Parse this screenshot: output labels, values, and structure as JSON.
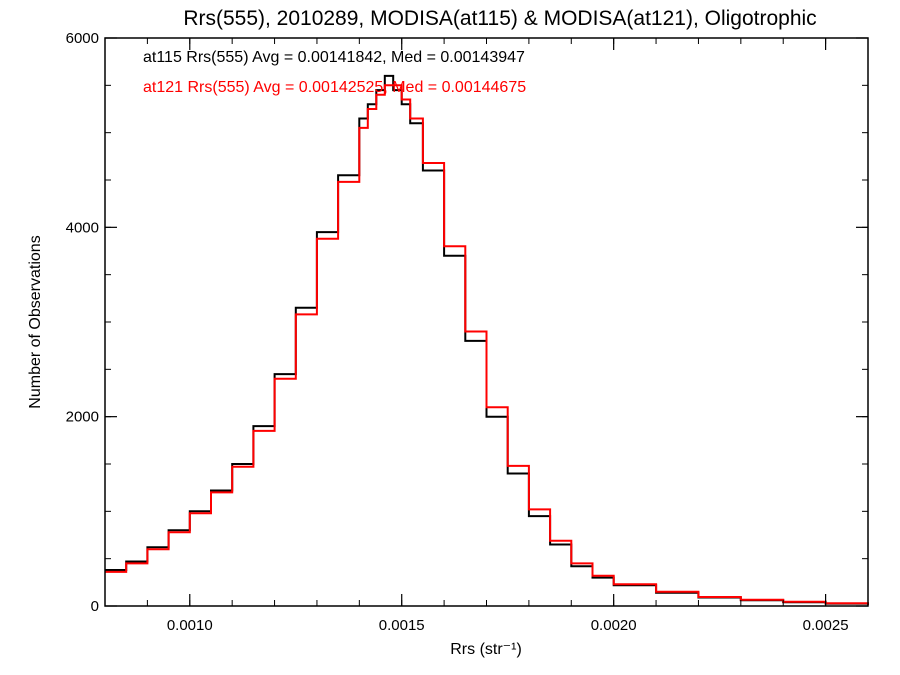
{
  "chart_data": {
    "type": "line",
    "style": "step-histogram",
    "title": "Rrs(555), 2010289, MODISA(at115) & MODISA(at121), Oligotrophic",
    "xlabel": "Rrs (str⁻¹)",
    "ylabel": "Number of Observations",
    "xlim": [
      0.0008,
      0.0026
    ],
    "ylim": [
      0,
      6000
    ],
    "xticks": [
      0.001,
      0.0015,
      0.002,
      0.0025
    ],
    "xtick_labels": [
      "0.0010",
      "0.0015",
      "0.0020",
      "0.0025"
    ],
    "yticks": [
      0,
      2000,
      4000,
      6000
    ],
    "ytick_labels": [
      "0",
      "2000",
      "4000",
      "6000"
    ],
    "grid": false,
    "legend_position": "top-left",
    "x": [
      0.0008,
      0.00085,
      0.0009,
      0.00095,
      0.001,
      0.00105,
      0.0011,
      0.00115,
      0.0012,
      0.00125,
      0.0013,
      0.00135,
      0.0014,
      0.00142,
      0.00144,
      0.00146,
      0.00148,
      0.0015,
      0.00152,
      0.00155,
      0.0016,
      0.00165,
      0.0017,
      0.00175,
      0.0018,
      0.00185,
      0.0019,
      0.00195,
      0.002,
      0.0021,
      0.0022,
      0.0023,
      0.0024,
      0.0025,
      0.0026
    ],
    "series": [
      {
        "name": "at115",
        "color": "#000000",
        "legend_text": "at115 Rrs(555) Avg = 0.00141842, Med = 0.00143947",
        "values": [
          380,
          470,
          620,
          800,
          1000,
          1220,
          1500,
          1900,
          2450,
          3150,
          3950,
          4550,
          5150,
          5300,
          5450,
          5600,
          5450,
          5300,
          5100,
          4600,
          3700,
          2800,
          2000,
          1400,
          950,
          650,
          420,
          300,
          220,
          140,
          90,
          60,
          40,
          25,
          10
        ]
      },
      {
        "name": "at121",
        "color": "#ff0000",
        "legend_text": "at121 Rrs(555) Avg = 0.00142525, Med = 0.00144675",
        "values": [
          360,
          450,
          600,
          780,
          980,
          1200,
          1470,
          1850,
          2400,
          3080,
          3880,
          4480,
          5050,
          5250,
          5400,
          5500,
          5500,
          5350,
          5150,
          4680,
          3800,
          2900,
          2100,
          1480,
          1020,
          690,
          450,
          320,
          230,
          150,
          95,
          65,
          45,
          28,
          12
        ]
      }
    ]
  }
}
